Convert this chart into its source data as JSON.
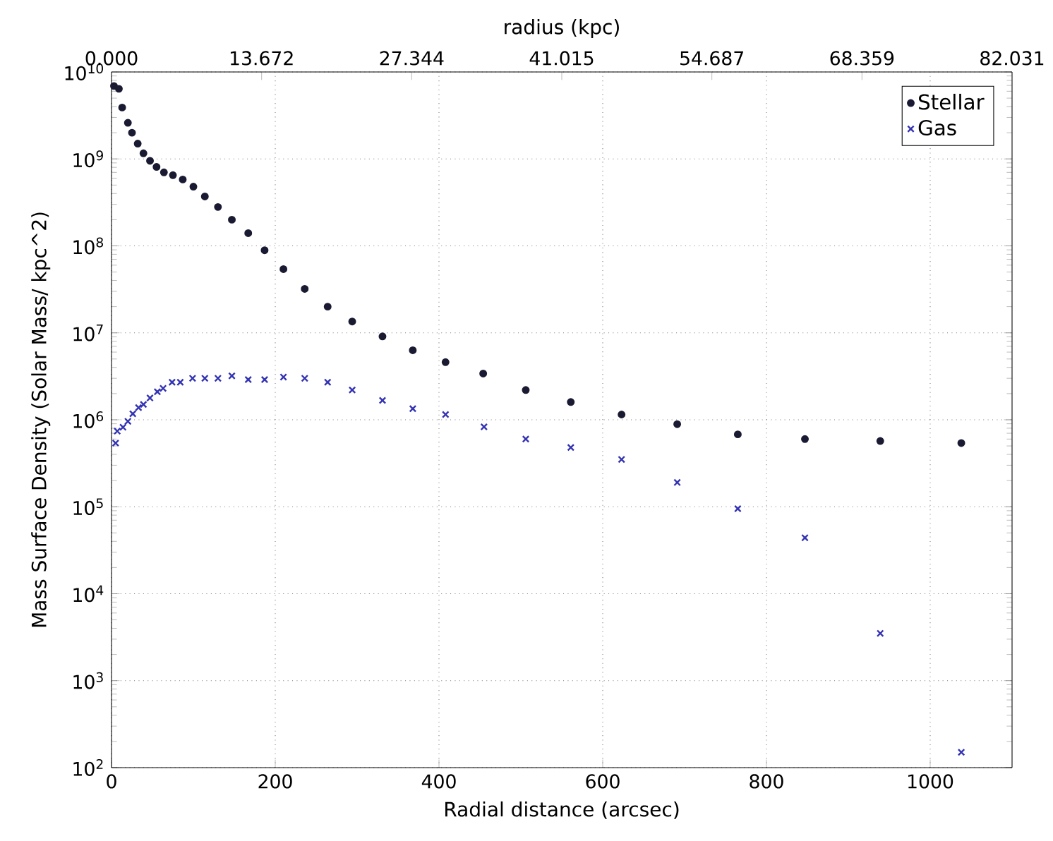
{
  "chart_data": {
    "type": "scatter",
    "xlabel": "Radial distance (arcsec)",
    "ylabel": "Mass Surface Density (Solar Mass/ kpc^2)",
    "x2label": "radius (kpc)",
    "xlim": [
      0,
      1100
    ],
    "xticks": [
      0,
      200,
      400,
      600,
      800,
      1000
    ],
    "x2lim": [
      0,
      82.031
    ],
    "x2ticks": [
      {
        "value": 0,
        "label": "0.000"
      },
      13.672,
      27.344,
      41.015,
      54.687,
      68.359,
      82.031
    ],
    "ylim": [
      100,
      10000000000
    ],
    "log": "y",
    "yticks": [
      {
        "value": 100,
        "label": "10$^{2}$"
      },
      {
        "value": 1000,
        "label": "10$^{3}$"
      },
      {
        "value": 10000,
        "label": "10$^{4}$"
      },
      {
        "value": 100000,
        "label": "10$^{5}$"
      },
      {
        "value": 1000000,
        "label": "10$^{6}$"
      },
      {
        "value": 10000000,
        "label": "10$^{7}$"
      },
      {
        "value": 100000000,
        "label": "10$^{8}$"
      },
      {
        "value": 1000000000,
        "label": "10$^{9}$"
      },
      {
        "value": 10000000000,
        "label": "10$^{10}$"
      }
    ],
    "grid": true,
    "legend": "top right",
    "series": [
      {
        "name": "Stellar",
        "color": "#1a1a33",
        "marker": "circle",
        "x": [
          3,
          9,
          13,
          20,
          25,
          32,
          39,
          47,
          55,
          64,
          75,
          87,
          100,
          114,
          130,
          147,
          167,
          187,
          210,
          236,
          264,
          294,
          331,
          368,
          408,
          454,
          506,
          561,
          623,
          691,
          765,
          847,
          939,
          1038
        ],
        "values": [
          6900000000,
          6400000000,
          3900000000,
          2600000000,
          2000000000,
          1500000000,
          1160000000,
          950000000,
          810000000,
          700000000,
          650000000,
          580000000,
          480000000,
          370000000,
          280000000,
          200000000,
          140000000,
          89000000,
          54000000,
          32000000,
          20000000,
          13500000,
          9100000,
          6300000,
          4600000,
          3400000,
          2200000,
          1600000,
          1150000,
          890000,
          680000,
          600000,
          570000,
          540000
        ]
      },
      {
        "name": "Gas",
        "color": "#3333b3",
        "marker": "cross",
        "x": [
          5,
          7,
          14,
          20,
          26,
          33,
          39,
          47,
          56,
          63,
          74,
          84,
          99,
          114,
          130,
          147,
          167,
          187,
          210,
          236,
          264,
          294,
          331,
          368,
          408,
          455,
          506,
          561,
          623,
          691,
          765,
          847,
          939,
          1038
        ],
        "values": [
          540000,
          740000,
          820000,
          960000,
          1170000,
          1380000,
          1500000,
          1780000,
          2100000,
          2300000,
          2700000,
          2700000,
          3000000,
          3000000,
          3000000,
          3200000,
          2900000,
          2900000,
          3100000,
          3000000,
          2700000,
          2200000,
          1670000,
          1340000,
          1150000,
          830000,
          600000,
          480000,
          350000,
          190000,
          95000,
          44000,
          3500,
          150
        ]
      }
    ]
  }
}
